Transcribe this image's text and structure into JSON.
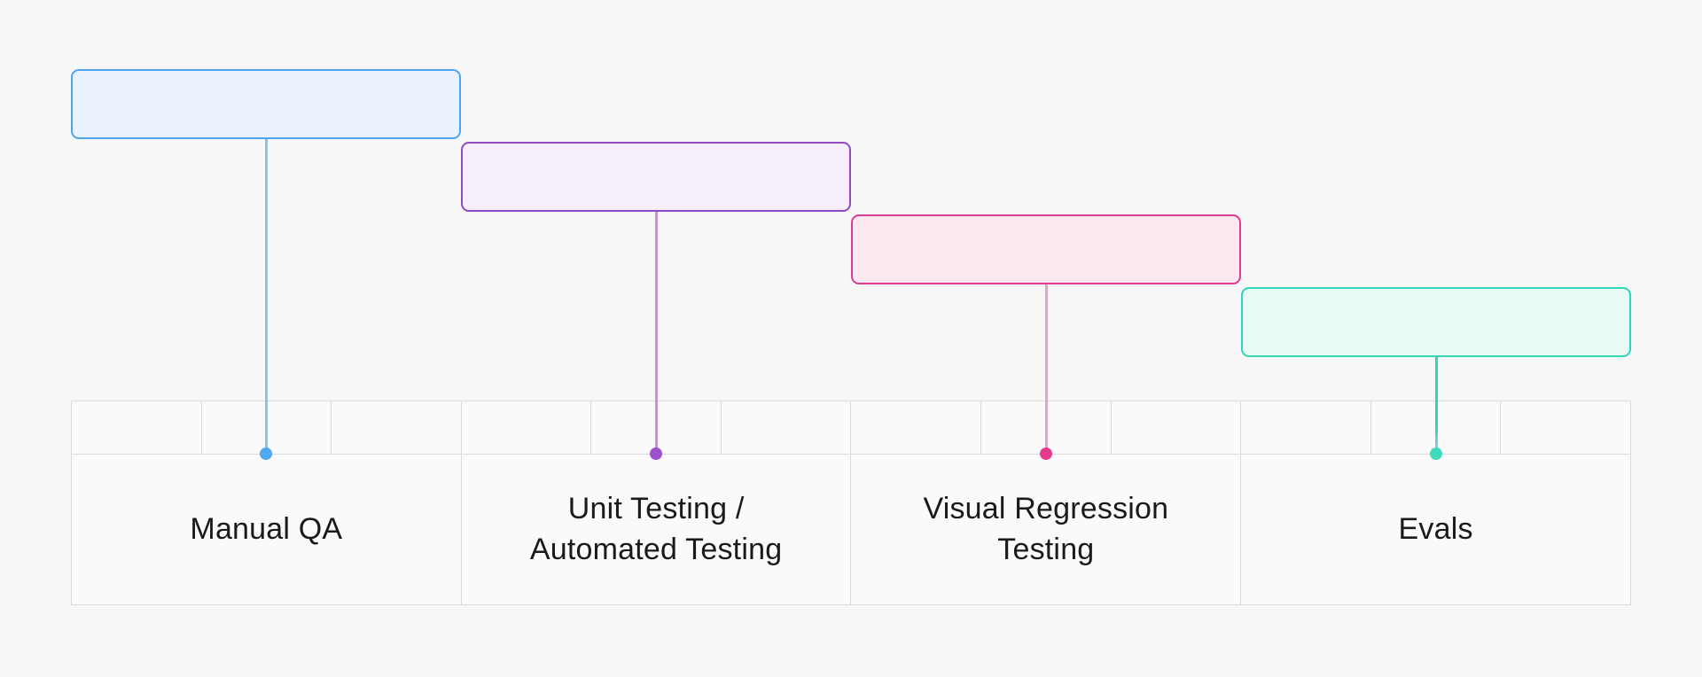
{
  "page": {
    "background_color": "#f7f7f7",
    "table_border_color": "#dbdbdb",
    "table_cell_color": "#fafafa",
    "label_text_color": "#1a1a1a"
  },
  "timeline": {
    "sections": 4,
    "subcells_per_section": 3
  },
  "stages": [
    {
      "label": "Manual QA",
      "fill": "#eaf2fd",
      "border": "#4ea4f1",
      "line": "#85c2f5",
      "line_end": "#85c2f5",
      "dot": "#4fa8f2"
    },
    {
      "label": "Unit Testing / Automated Testing",
      "fill": "#f7eefc",
      "border": "#8f4bc5",
      "line": "#cf8cdf",
      "line_end": "#cf8cdf",
      "dot": "#9d50ce"
    },
    {
      "label": "Visual Regression Testing",
      "fill": "#fce7f1",
      "border": "#de3c8f",
      "line": "#ec9fc9",
      "line_end": "#ec9fc9",
      "dot": "#e73a8c"
    },
    {
      "label": "Evals",
      "fill": "#e9faf5",
      "border": "#2fd6b7",
      "line": "#2fd6b7",
      "line_end": "#a9c8ee",
      "dot": "#3edcbc"
    }
  ]
}
